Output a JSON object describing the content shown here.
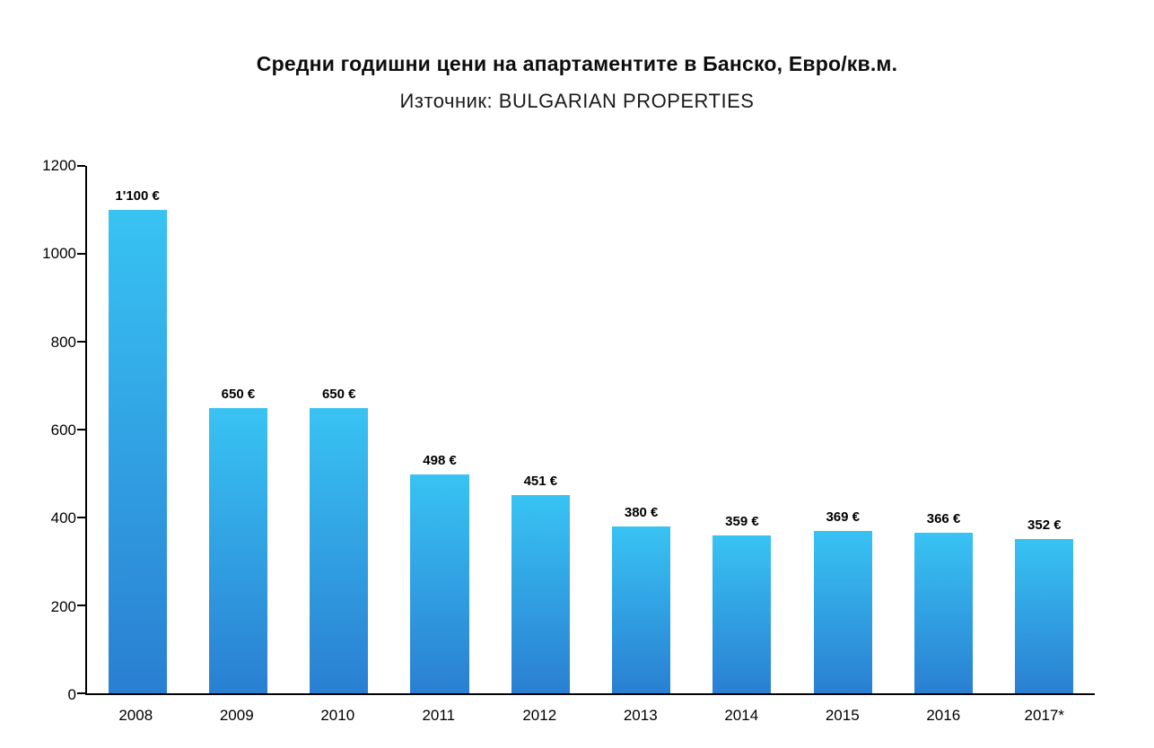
{
  "header": {
    "title": "Средни годишни цени на апартаментите в Банско, Евро/кв.м.",
    "subtitle": "Източник: BULGARIAN PROPERTIES"
  },
  "chart_data": {
    "type": "bar",
    "title": "Средни годишни цени на апартаментите в Банско, Евро/кв.м.",
    "subtitle": "Източник: BULGARIAN PROPERTIES",
    "categories": [
      "2008",
      "2009",
      "2010",
      "2011",
      "2012",
      "2013",
      "2014",
      "2015",
      "2016",
      "2017*"
    ],
    "values": [
      1100,
      650,
      650,
      498,
      451,
      380,
      359,
      369,
      366,
      352
    ],
    "value_labels": [
      "1'100 €",
      "650 €",
      "650 €",
      "498 €",
      "451 €",
      "380 €",
      "359 €",
      "369 €",
      "366 €",
      "352 €"
    ],
    "xlabel": "",
    "ylabel": "",
    "ylim": [
      0,
      1200
    ],
    "yticks": [
      0,
      200,
      400,
      600,
      800,
      1000,
      1200
    ],
    "grid": false,
    "legend": "none",
    "bar_color_top": "#38c3f3",
    "bar_color_bottom": "#2a7fd2",
    "axis_color": "#000000"
  }
}
